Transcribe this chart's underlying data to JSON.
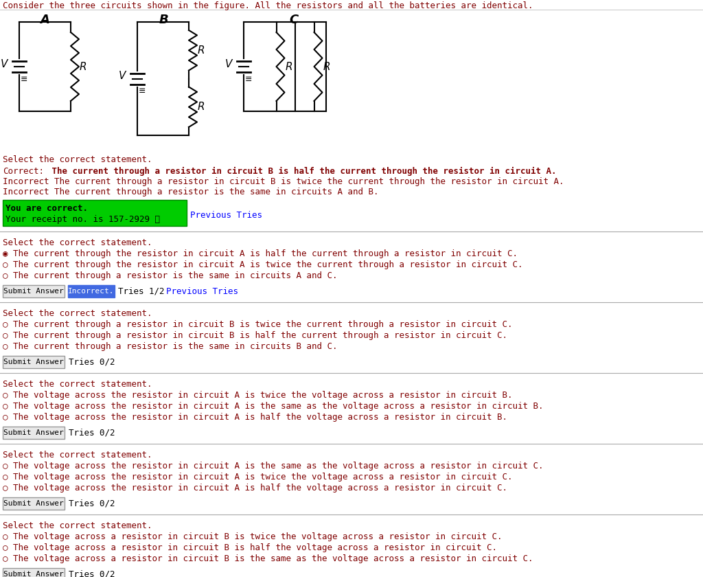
{
  "title": "Consider the three circuits shown in the figure. All the resistors and all the batteries are identical.",
  "title_color": "#800000",
  "bg_color": "#ffffff",
  "circuit_labels": [
    "A",
    "B",
    "C"
  ],
  "section1": {
    "heading": "Select the correct statement.",
    "correct_label": "Correct:",
    "correct_text": " The current through a resistor in circuit B is half the current through the resistor in circuit A.",
    "incorrect_lines": [
      "Incorrect The current through a resistor in circuit B is twice the current through the resistor in circuit A.",
      "Incorrect The current through a resistor is the same in circuits A and B."
    ],
    "green_box_line1": "You are correct.",
    "green_box_line2": "Your receipt no. is 157-2929 ⓘ",
    "link_text": "Previous Tries"
  },
  "section2": {
    "heading": "Select the correct statement.",
    "options": [
      "◉ The current through the resistor in circuit A is half the current through a resistor in circuit C.",
      "○ The current through the resistor in circuit A is twice the current through a resistor in circuit C.",
      "○ The current through a resistor is the same in circuits A and C."
    ],
    "button_text": "Submit Answer",
    "status": "Incorrect.",
    "tries": "Tries 1/2",
    "link": "Previous Tries"
  },
  "section3": {
    "heading": "Select the correct statement.",
    "options": [
      "○ The current through a resistor in circuit B is twice the current through a resistor in circuit C.",
      "○ The current through a resistor in circuit B is half the current through a resistor in circuit C.",
      "○ The current through a resistor is the same in circuits B and C."
    ],
    "button_text": "Submit Answer",
    "tries": "Tries 0/2"
  },
  "section4": {
    "heading": "Select the correct statement.",
    "options": [
      "○ The voltage across the resistor in circuit A is twice the voltage across a resistor in circuit B.",
      "○ The voltage across the resistor in circuit A is the same as the voltage across a resistor in circuit B.",
      "○ The voltage across the resistor in circuit A is half the voltage across a resistor in circuit B."
    ],
    "button_text": "Submit Answer",
    "tries": "Tries 0/2"
  },
  "section5": {
    "heading": "Select the correct statement.",
    "options": [
      "○ The voltage across the resistor in circuit A is the same as the voltage across a resistor in circuit C.",
      "○ The voltage across the resistor in circuit A is twice the voltage across a resistor in circuit C.",
      "○ The voltage across the resistor in circuit A is half the voltage across a resistor in circuit C."
    ],
    "button_text": "Submit Answer",
    "tries": "Tries 0/2"
  },
  "section6": {
    "heading": "Select the correct statement.",
    "options": [
      "○ The voltage across a resistor in circuit B is twice the voltage across a resistor in circuit C.",
      "○ The voltage across a resistor in circuit B is half the voltage across a resistor in circuit C.",
      "○ The voltage across a resistor in circuit B is the same as the voltage across a resistor in circuit C."
    ],
    "button_text": "Submit Answer",
    "tries": "Tries 0/2"
  },
  "text_color": "#800000",
  "dark_red": "#8B0000",
  "correct_color": "#006400",
  "green_bg": "#00cc00",
  "incorrect_bg": "#4169E1"
}
